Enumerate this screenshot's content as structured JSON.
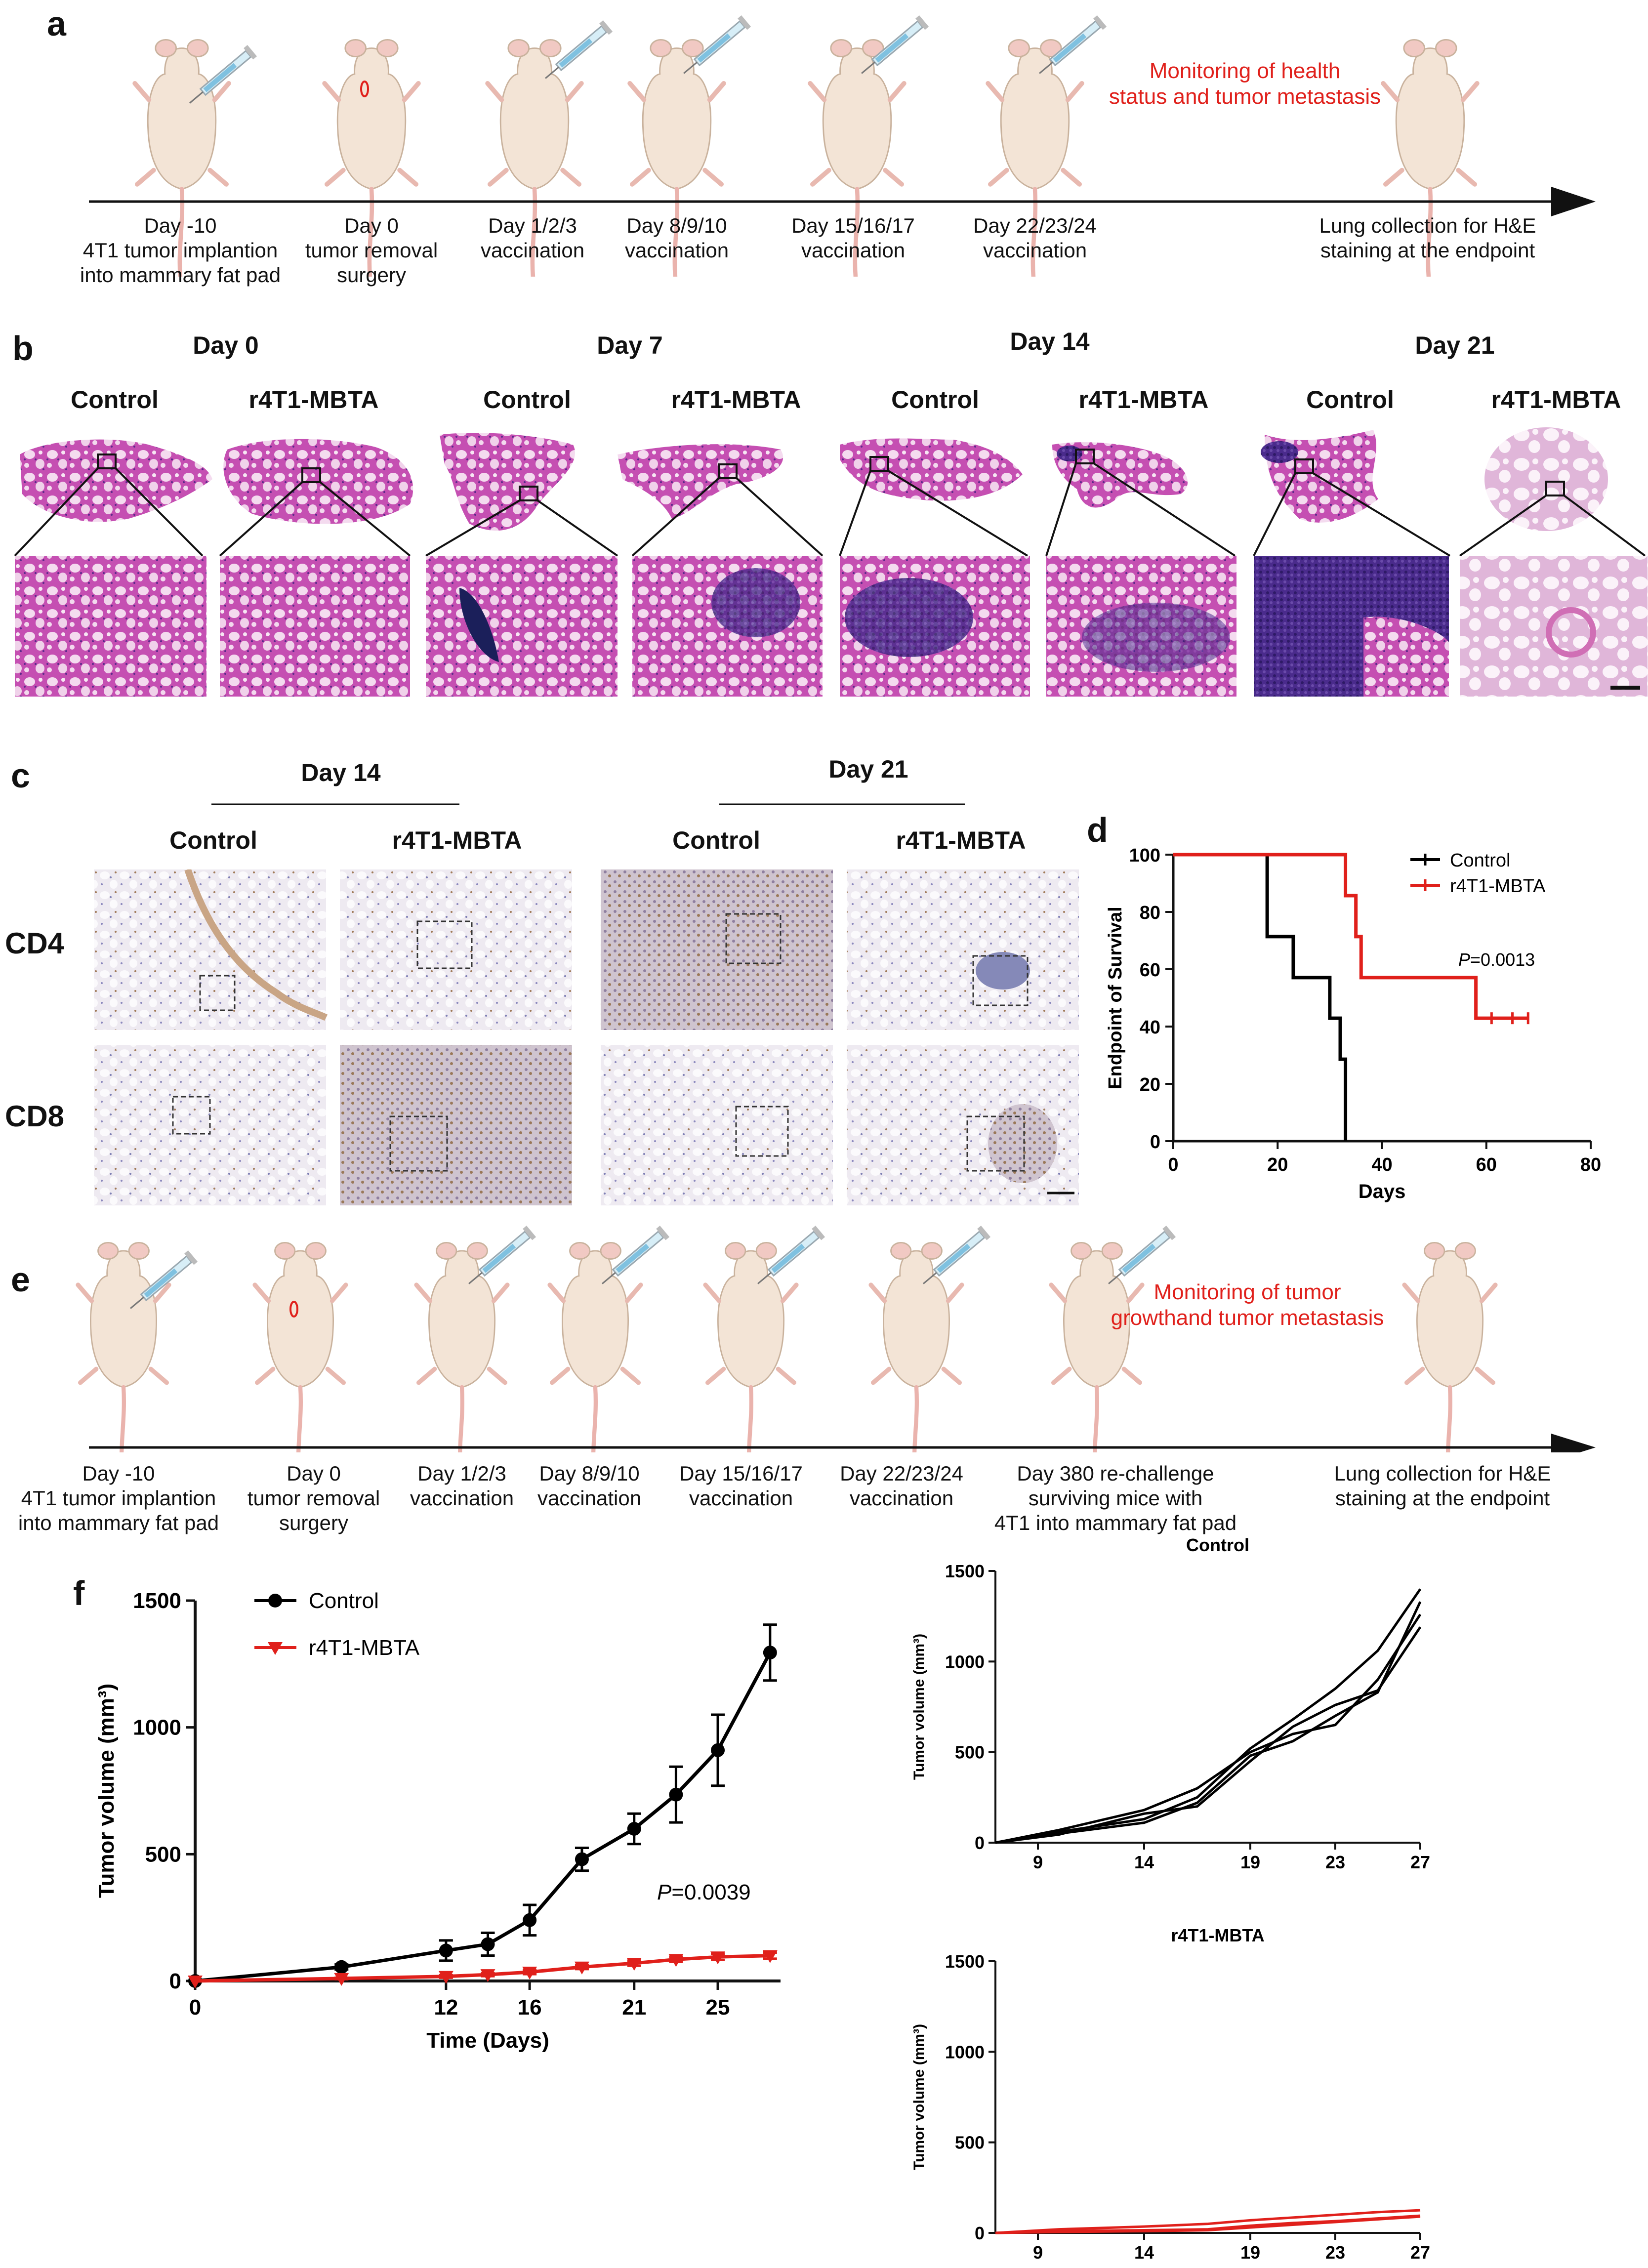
{
  "panel_a": {
    "label": "a",
    "timeline": [
      {
        "text": "Day -10\n4T1 tumor implantion\ninto mammary fat pad"
      },
      {
        "text": "Day 0\ntumor removal\nsurgery"
      },
      {
        "text": "Day 1/2/3\nvaccination"
      },
      {
        "text": "Day 8/9/10\nvaccination"
      },
      {
        "text": "Day 15/16/17\nvaccination"
      },
      {
        "text": "Day 22/23/24\nvaccination"
      },
      {
        "text": "Lung collection for H&E\nstaining at the endpoint"
      }
    ],
    "note": "Monitoring of health\nstatus and tumor metastasis"
  },
  "panel_b": {
    "label": "b",
    "days": [
      "Day 0",
      "Day 7",
      "Day 14",
      "Day 21"
    ],
    "groups": [
      "Control",
      "r4T1-MBTA",
      "Control",
      "r4T1-MBTA",
      "Control",
      "r4T1-MBTA",
      "Control",
      "r4T1-MBTA"
    ]
  },
  "panel_c": {
    "label": "c",
    "days": [
      "Day 14",
      "Day 21"
    ],
    "groups": [
      "Control",
      "r4T1-MBTA",
      "Control",
      "r4T1-MBTA"
    ],
    "rows": [
      "CD4",
      "CD8"
    ]
  },
  "panel_e": {
    "label": "e",
    "timeline": [
      {
        "text": "Day -10\n4T1 tumor implantion\ninto mammary fat pad"
      },
      {
        "text": "Day 0\ntumor removal\nsurgery"
      },
      {
        "text": "Day 1/2/3\nvaccination"
      },
      {
        "text": "Day 8/9/10\nvaccination"
      },
      {
        "text": "Day 15/16/17\nvaccination"
      },
      {
        "text": "Day 22/23/24\nvaccination"
      },
      {
        "text": "Day 380 re-challenge\nsurviving mice with\n4T1 into mammary fat pad"
      },
      {
        "text": "Lung collection for H&E\nstaining at the endpoint"
      }
    ],
    "note": "Monitoring of tumor\ngrowthand tumor metastasis"
  },
  "colors": {
    "control": "#000000",
    "treatment": "#e0201b",
    "note": "#e0201b"
  },
  "chart_data": [
    {
      "id": "d",
      "label": "d",
      "type": "line",
      "subtype": "kaplan-meier",
      "xlabel": "Days",
      "ylabel": "Endpoint of Survival",
      "xlim": [
        0,
        80
      ],
      "ylim": [
        0,
        100
      ],
      "xticks": [
        "0",
        "20",
        "40",
        "60",
        "80"
      ],
      "yticks": [
        "0",
        "20",
        "40",
        "60",
        "80",
        "100"
      ],
      "annotation": "P=0.0013",
      "legend_position": "top-right",
      "series": [
        {
          "name": "Control",
          "color": "#000000",
          "steps": [
            [
              0,
              100
            ],
            [
              18,
              100
            ],
            [
              18,
              71.4
            ],
            [
              23,
              71.4
            ],
            [
              23,
              57.1
            ],
            [
              30,
              57.1
            ],
            [
              30,
              42.9
            ],
            [
              32,
              42.9
            ],
            [
              32,
              28.6
            ],
            [
              33,
              28.6
            ],
            [
              33,
              0
            ]
          ]
        },
        {
          "name": "r4T1-MBTA",
          "color": "#e0201b",
          "steps": [
            [
              0,
              100
            ],
            [
              33,
              100
            ],
            [
              33,
              85.7
            ],
            [
              35,
              85.7
            ],
            [
              35,
              71.4
            ],
            [
              36,
              71.4
            ],
            [
              36,
              57.1
            ],
            [
              58,
              57.1
            ],
            [
              58,
              42.9
            ],
            [
              68,
              42.9
            ]
          ],
          "censored": [
            [
              61,
              42.9
            ],
            [
              65,
              42.9
            ],
            [
              68,
              42.9
            ]
          ]
        }
      ]
    },
    {
      "id": "f",
      "label": "f",
      "type": "line",
      "xlabel": "Time (Days)",
      "ylabel": "Tumor volume (mm³)",
      "xlim": [
        0,
        28
      ],
      "ylim": [
        0,
        1500
      ],
      "xticks": [
        "0",
        "12",
        "16",
        "21",
        "25"
      ],
      "yticks": [
        "0",
        "500",
        "1000",
        "1500"
      ],
      "annotation": "P=0.0039",
      "legend_position": "top-left",
      "series": [
        {
          "name": "Control",
          "color": "#000000",
          "marker": "circle",
          "x": [
            0,
            7,
            12,
            14,
            16,
            18.5,
            21,
            23,
            25,
            27.5
          ],
          "y": [
            0,
            55,
            120,
            145,
            240,
            480,
            600,
            735,
            910,
            1295
          ],
          "err": [
            0,
            10,
            40,
            45,
            60,
            45,
            60,
            110,
            140,
            110
          ]
        },
        {
          "name": "r4T1-MBTA",
          "color": "#e0201b",
          "marker": "triangle-down",
          "x": [
            0,
            7,
            12,
            14,
            16,
            18.5,
            21,
            23,
            25,
            27.5
          ],
          "y": [
            0,
            10,
            18,
            25,
            35,
            55,
            70,
            85,
            95,
            100
          ],
          "err": [
            0,
            3,
            5,
            6,
            8,
            8,
            10,
            10,
            12,
            12
          ]
        }
      ]
    },
    {
      "id": "f-control",
      "type": "line",
      "title": "Control",
      "xlabel": "Time (Days)",
      "ylabel": "Tumor volume (mm³)",
      "xlim": [
        7,
        27
      ],
      "ylim": [
        0,
        1500
      ],
      "xticks": [
        "9",
        "14",
        "19",
        "23",
        "27"
      ],
      "yticks": [
        "0",
        "500",
        "1000",
        "1500"
      ],
      "series": [
        {
          "color": "#000000",
          "x": [
            7,
            10,
            14,
            16.5,
            19,
            21,
            23,
            25,
            27
          ],
          "y": [
            0,
            60,
            130,
            250,
            520,
            680,
            850,
            1060,
            1400
          ]
        },
        {
          "color": "#000000",
          "x": [
            7,
            10,
            14,
            16.5,
            19,
            21,
            23,
            25,
            27
          ],
          "y": [
            0,
            50,
            110,
            220,
            480,
            560,
            700,
            830,
            1330
          ]
        },
        {
          "color": "#000000",
          "x": [
            7,
            10,
            14,
            16.5,
            19,
            21,
            23,
            25,
            27
          ],
          "y": [
            0,
            70,
            180,
            300,
            500,
            600,
            650,
            900,
            1260
          ]
        },
        {
          "color": "#000000",
          "x": [
            7,
            10,
            14,
            16.5,
            19,
            21,
            23,
            25,
            27
          ],
          "y": [
            0,
            45,
            160,
            200,
            450,
            640,
            760,
            840,
            1190
          ]
        }
      ]
    },
    {
      "id": "f-treatment",
      "type": "line",
      "title": "r4T1-MBTA",
      "xlabel": "Time (Days)",
      "ylabel": "Tumor volume (mm³)",
      "xlim": [
        7,
        27
      ],
      "ylim": [
        0,
        1500
      ],
      "xticks": [
        "9",
        "14",
        "19",
        "23",
        "27"
      ],
      "yticks": [
        "0",
        "500",
        "1000",
        "1500"
      ],
      "series": [
        {
          "color": "#e0201b",
          "x": [
            7,
            10,
            14,
            17,
            19,
            21,
            23,
            25,
            27
          ],
          "y": [
            0,
            20,
            35,
            50,
            70,
            85,
            100,
            115,
            125
          ]
        },
        {
          "color": "#e0201b",
          "x": [
            7,
            10,
            14,
            17,
            19,
            21,
            23,
            25,
            27
          ],
          "y": [
            0,
            5,
            10,
            15,
            30,
            45,
            60,
            75,
            90
          ]
        },
        {
          "color": "#e0201b",
          "x": [
            7,
            10,
            14,
            17,
            19,
            21,
            23,
            25,
            27
          ],
          "y": [
            0,
            10,
            15,
            20,
            40,
            55,
            65,
            80,
            95
          ]
        }
      ]
    }
  ]
}
